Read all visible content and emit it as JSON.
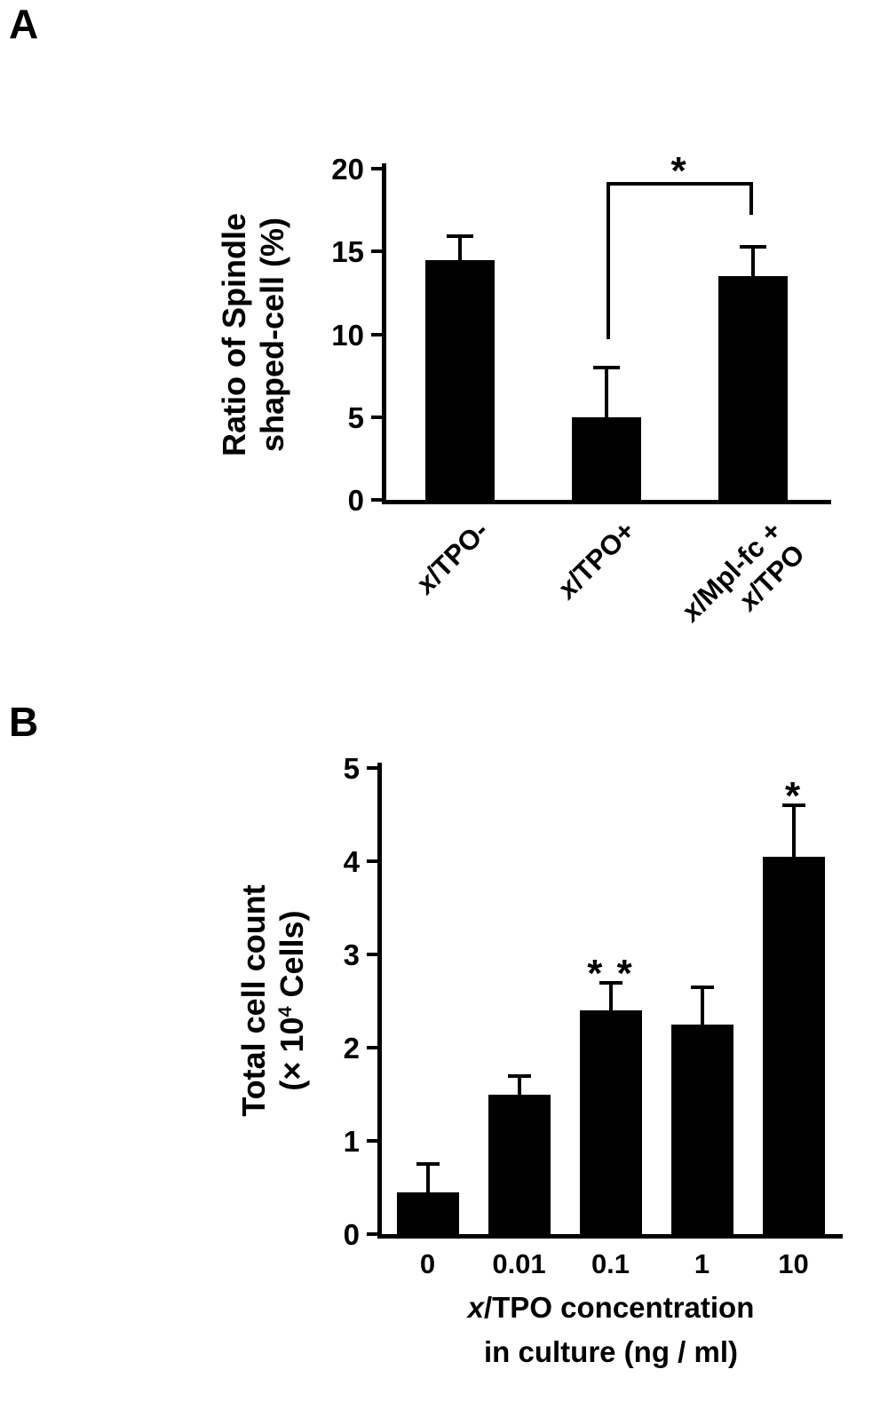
{
  "figure": {
    "panel_a_label": "A",
    "panel_b_label": "B",
    "background_color": "#ffffff",
    "text_color": "#000000"
  },
  "chart_data": [
    {
      "panel": "A",
      "type": "bar",
      "title": "",
      "ylabel_lines": [
        "Ratio of Spindle",
        "shaped-cell (%)"
      ],
      "ylabel": "Ratio of Spindle shaped-cell (%)",
      "xlabel": "",
      "ylim": [
        0,
        20
      ],
      "yticks": [
        0,
        5,
        10,
        15,
        20
      ],
      "grid": false,
      "legend": false,
      "bar_color": "#000000",
      "categories": [
        "x/TPO-",
        "x/TPO+",
        "x/Mpl-fc +\nx/TPO"
      ],
      "values": [
        14.5,
        5,
        13.5
      ],
      "errors_upper": [
        1.4,
        3,
        1.8
      ],
      "significance_bracket": {
        "label": "*",
        "from_bar_index": 1,
        "to_bar_index": 2,
        "top_value": 19.2,
        "from_leg_bottom_value": 9.7,
        "to_leg_bottom_value": 17.2
      }
    },
    {
      "panel": "B",
      "type": "bar",
      "title": "",
      "ylabel_lines": [
        "Total cell count",
        "(× 10^4 Cells)"
      ],
      "ylabel": "Total cell count (× 10^4 Cells)",
      "xlabel_lines": [
        "x/TPO concentration",
        "in culture (ng / ml)"
      ],
      "xlabel": "x/TPO concentration in culture (ng / ml)",
      "ylim": [
        0,
        5
      ],
      "yticks": [
        0,
        1,
        2,
        3,
        4,
        5
      ],
      "grid": false,
      "legend": false,
      "bar_color": "#000000",
      "categories": [
        "0",
        "0.01",
        "0.1",
        "1",
        "10"
      ],
      "values": [
        0.45,
        1.5,
        2.4,
        2.25,
        4.05
      ],
      "errors_upper": [
        0.3,
        0.2,
        0.3,
        0.4,
        0.55
      ],
      "annotations": [
        {
          "bar_index": 2,
          "label": "* *"
        },
        {
          "bar_index": 4,
          "label": "*"
        }
      ]
    }
  ]
}
